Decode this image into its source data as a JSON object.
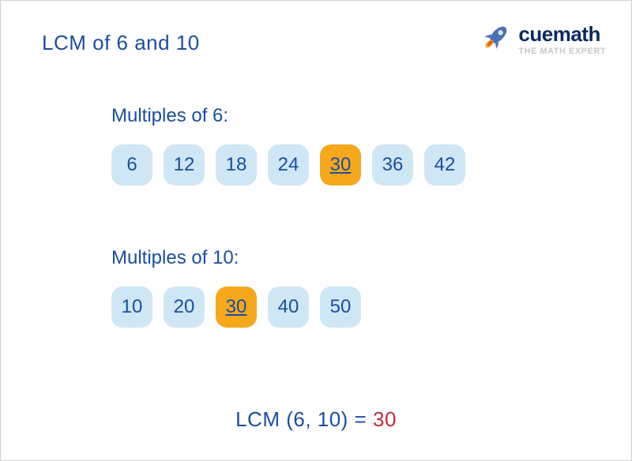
{
  "colors": {
    "primary": "#1a4ea1",
    "accent_bg": "#f5a81c",
    "chip_bg": "#cfe6f5",
    "result_accent": "#c02b3a",
    "logo_dark": "#0a2a5e",
    "logo_tagline": "#c9c9c9",
    "rocket_body": "#4a6fb5",
    "rocket_flame1": "#f5a81c",
    "rocket_flame2": "#e05a2b"
  },
  "title": "LCM of 6 and 10",
  "logo": {
    "brand": "cuemath",
    "tagline": "THE MATH EXPERT"
  },
  "section1": {
    "label": "Multiples of 6:",
    "chips": [
      {
        "v": "6",
        "hl": false
      },
      {
        "v": "12",
        "hl": false
      },
      {
        "v": "18",
        "hl": false
      },
      {
        "v": "24",
        "hl": false
      },
      {
        "v": "30",
        "hl": true
      },
      {
        "v": "36",
        "hl": false
      },
      {
        "v": "42",
        "hl": false
      }
    ]
  },
  "section2": {
    "label": "Multiples of 10:",
    "chips": [
      {
        "v": "10",
        "hl": false
      },
      {
        "v": "20",
        "hl": false
      },
      {
        "v": "30",
        "hl": true
      },
      {
        "v": "40",
        "hl": false
      },
      {
        "v": "50",
        "hl": false
      }
    ]
  },
  "result": {
    "prefix": "LCM (6, 10) = ",
    "value": "30"
  },
  "typography": {
    "title_fontsize": 26,
    "label_fontsize": 24,
    "chip_fontsize": 24,
    "result_fontsize": 26,
    "chip_radius": 14,
    "chip_size": 52,
    "chip_gap": 14
  }
}
